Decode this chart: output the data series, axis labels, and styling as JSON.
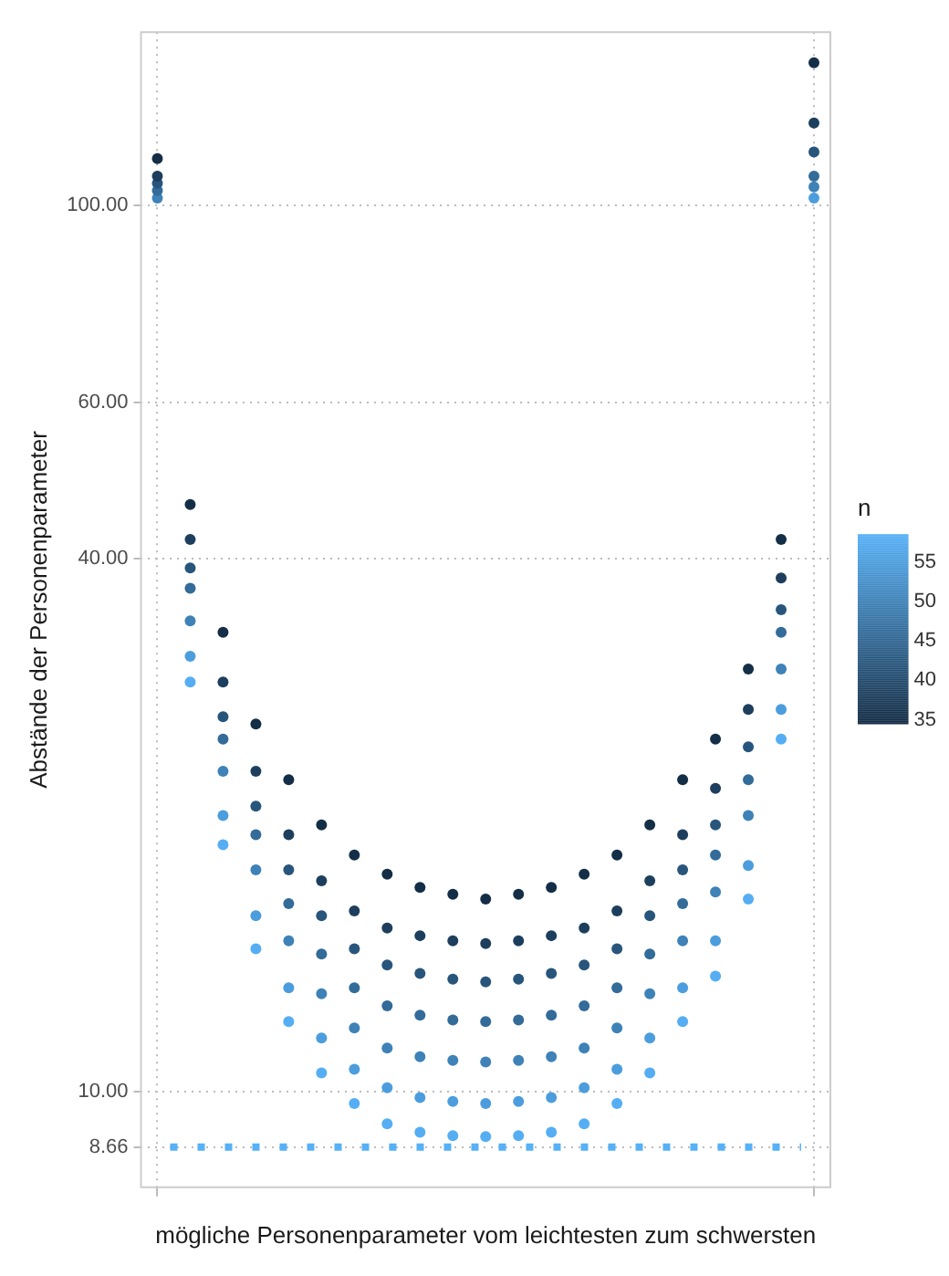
{
  "chart_data": {
    "type": "scatter",
    "xlabel": "mögliche Personenparameter vom leichtesten zum schwersten",
    "ylabel": "Abstände der Personenparameter",
    "clabel": "n",
    "log": "y",
    "grid": true,
    "legend": false,
    "marker": "circle",
    "tick_labels": "y",
    "categories": [
      null,
      null,
      null,
      null,
      null,
      null,
      null,
      null,
      null,
      null,
      null,
      null,
      null,
      null,
      null,
      null,
      null,
      null,
      null,
      null,
      null
    ],
    "ylim": [
      7.8,
      157
    ],
    "yticks": [
      {
        "value": 8.66,
        "label": "8.66"
      },
      {
        "value": 10,
        "label": "10.00"
      },
      {
        "value": 40,
        "label": "40.00"
      },
      {
        "value": 60,
        "label": "60.00"
      },
      {
        "value": 100,
        "label": "100.00"
      }
    ],
    "clim": [
      34.5,
      58.5
    ],
    "cticks": [
      35,
      40,
      45,
      50,
      55
    ],
    "ref_lines": [
      {
        "axis": "y",
        "value": 8.66,
        "color": "#56b1f7",
        "line_style": "dashed"
      }
    ],
    "series": [
      {
        "values": [
          113,
          46,
          33,
          26,
          22.5,
          20,
          18.5,
          17.6,
          17,
          16.7,
          16.5,
          16.7,
          17,
          17.6,
          18.5,
          20,
          22.5,
          25,
          30,
          42,
          145
        ],
        "cvalues": [
          35,
          35,
          35,
          35,
          35,
          35,
          35,
          35,
          35,
          35,
          35,
          35,
          35,
          35,
          35,
          35,
          35,
          35,
          35,
          35,
          35
        ]
      },
      {
        "values": [
          108,
          42,
          29,
          23,
          19.5,
          17.3,
          16,
          15.3,
          15,
          14.8,
          14.7,
          14.8,
          15,
          15.3,
          16,
          17.3,
          19.5,
          22,
          27,
          38,
          124
        ],
        "cvalues": [
          38,
          38,
          38,
          38,
          38,
          38,
          38,
          38,
          38,
          38,
          38,
          38,
          38,
          38,
          38,
          38,
          38,
          38,
          38,
          38,
          38
        ]
      },
      {
        "values": [
          106,
          39,
          26.5,
          21,
          17.8,
          15.8,
          14.5,
          13.9,
          13.6,
          13.4,
          13.3,
          13.4,
          13.6,
          13.9,
          14.5,
          15.8,
          17.8,
          20,
          24.5,
          35,
          115
        ],
        "cvalues": [
          42,
          42,
          42,
          42,
          42,
          42,
          42,
          42,
          42,
          42,
          42,
          42,
          42,
          42,
          42,
          42,
          42,
          42,
          42,
          42,
          42
        ]
      },
      {
        "values": [
          104,
          37,
          25,
          19.5,
          16.3,
          14.3,
          13.1,
          12.5,
          12.2,
          12.05,
          12,
          12.05,
          12.2,
          12.5,
          13.1,
          14.3,
          16.3,
          18.5,
          22.5,
          33,
          108
        ],
        "cvalues": [
          46,
          46,
          46,
          46,
          46,
          46,
          46,
          46,
          46,
          46,
          46,
          46,
          46,
          46,
          46,
          46,
          46,
          46,
          46,
          46,
          46
        ]
      },
      {
        "values": [
          102,
          34,
          23,
          17.8,
          14.8,
          12.9,
          11.8,
          11.2,
          10.95,
          10.85,
          10.8,
          10.85,
          10.95,
          11.2,
          11.8,
          12.9,
          14.8,
          16.8,
          20.5,
          30,
          105
        ],
        "cvalues": [
          50,
          50,
          50,
          50,
          50,
          50,
          50,
          50,
          50,
          50,
          50,
          50,
          50,
          50,
          50,
          50,
          50,
          50,
          50,
          50,
          50
        ]
      },
      {
        "values": [
          null,
          31,
          20.5,
          15.8,
          13.1,
          11.5,
          10.6,
          10.1,
          9.85,
          9.75,
          9.7,
          9.75,
          9.85,
          10.1,
          10.6,
          11.5,
          13.1,
          14.8,
          18,
          27,
          102
        ],
        "cvalues": [
          null,
          55,
          55,
          55,
          55,
          55,
          55,
          55,
          55,
          55,
          55,
          55,
          55,
          55,
          55,
          55,
          55,
          55,
          55,
          55,
          55
        ]
      },
      {
        "values": [
          null,
          29,
          19,
          14.5,
          12,
          10.5,
          9.7,
          9.2,
          9,
          8.92,
          8.9,
          8.92,
          9,
          9.2,
          9.7,
          10.5,
          12,
          13.5,
          16.5,
          25,
          null
        ],
        "cvalues": [
          null,
          58,
          58,
          58,
          58,
          58,
          58,
          58,
          58,
          58,
          58,
          58,
          58,
          58,
          58,
          58,
          58,
          58,
          58,
          58,
          null
        ]
      }
    ]
  }
}
